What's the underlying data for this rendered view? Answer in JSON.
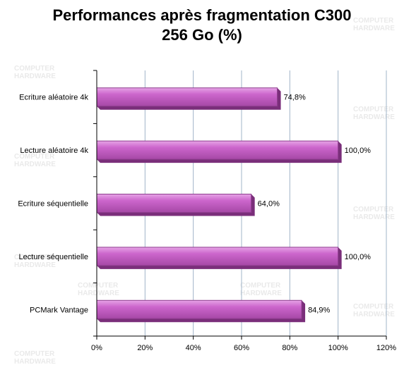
{
  "chart_data": {
    "type": "bar",
    "orientation": "horizontal",
    "title_lines": [
      "Performances après fragmentation C300",
      "256 Go (%)"
    ],
    "categories": [
      "Ecriture aléatoire 4k",
      "Lecture aléatoire 4k",
      "Ecriture séquentielle",
      "Lecture séquentielle",
      "PCMark Vantage"
    ],
    "values": [
      74.8,
      100.0,
      64.0,
      100.0,
      84.9
    ],
    "value_labels": [
      "74,8%",
      "100,0%",
      "64,0%",
      "100,0%",
      "84,9%"
    ],
    "xlim": [
      0,
      120
    ],
    "x_ticks": [
      0,
      20,
      40,
      60,
      80,
      100,
      120
    ],
    "x_tick_labels": [
      "0%",
      "20%",
      "40%",
      "60%",
      "80%",
      "100%",
      "120%"
    ],
    "grid": "vertical",
    "bar_color": "#CC66CC",
    "grid_color": "#A0B4C8",
    "watermark_text": [
      "COMPUTER",
      "HARDWARE"
    ]
  }
}
